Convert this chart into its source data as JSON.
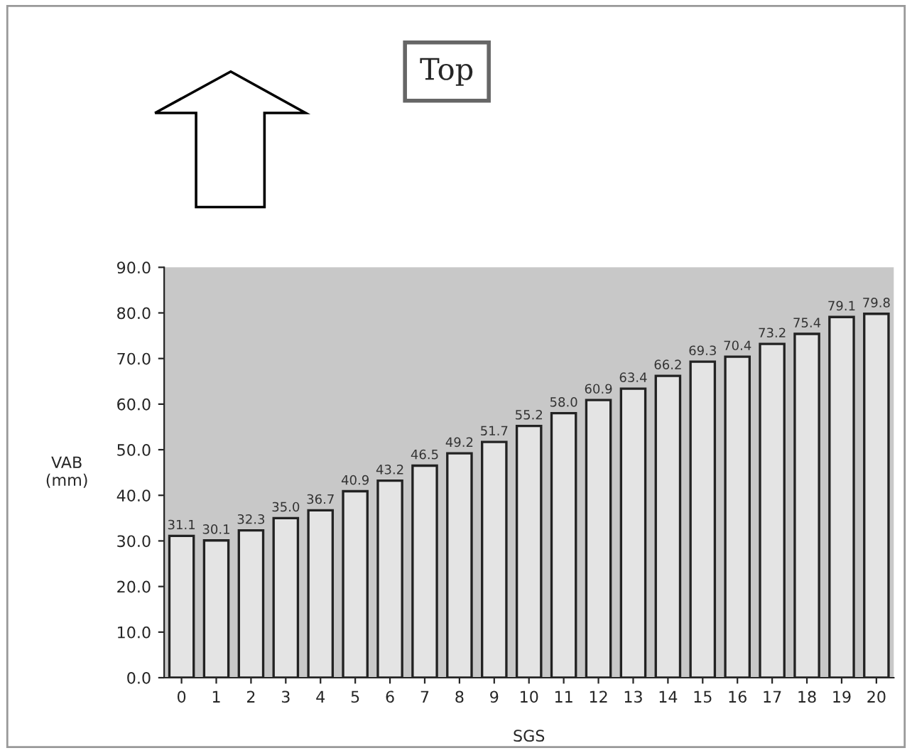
{
  "chart_data": {
    "type": "bar",
    "xlabel": "SGS",
    "ylabel": "VAB\n(mm)",
    "categories": [
      "0",
      "1",
      "2",
      "3",
      "4",
      "5",
      "6",
      "7",
      "8",
      "9",
      "10",
      "11",
      "12",
      "13",
      "14",
      "15",
      "16",
      "17",
      "18",
      "19",
      "20"
    ],
    "values": [
      31.1,
      30.1,
      32.3,
      35.0,
      36.7,
      40.9,
      43.2,
      46.5,
      49.2,
      51.7,
      55.2,
      58.0,
      60.9,
      63.4,
      66.2,
      69.3,
      70.4,
      73.2,
      75.4,
      79.1,
      79.8
    ],
    "value_labels": [
      "31.1",
      "30.1",
      "32.3",
      "35.0",
      "36.7",
      "40.9",
      "43.2",
      "46.5",
      "49.2",
      "51.7",
      "55.2",
      "58.0",
      "60.9",
      "63.4",
      "66.2",
      "69.3",
      "70.4",
      "73.2",
      "75.4",
      "79.1",
      "79.8"
    ],
    "color": "#e4e4e4",
    "ylim": [
      0,
      90
    ],
    "yticks": [
      {
        "value": 0,
        "label": "0.0"
      },
      {
        "value": 10,
        "label": "10.0"
      },
      {
        "value": 20,
        "label": "20.0"
      },
      {
        "value": 30,
        "label": "30.0"
      },
      {
        "value": 40,
        "label": "40.0"
      },
      {
        "value": 50,
        "label": "50.0"
      },
      {
        "value": 60,
        "label": "60.0"
      },
      {
        "value": 70,
        "label": "70.0"
      },
      {
        "value": 80,
        "label": "80.0"
      },
      {
        "value": 90,
        "label": "90.0"
      }
    ],
    "annotations": [
      "Top"
    ],
    "grid": false,
    "legend": false
  }
}
